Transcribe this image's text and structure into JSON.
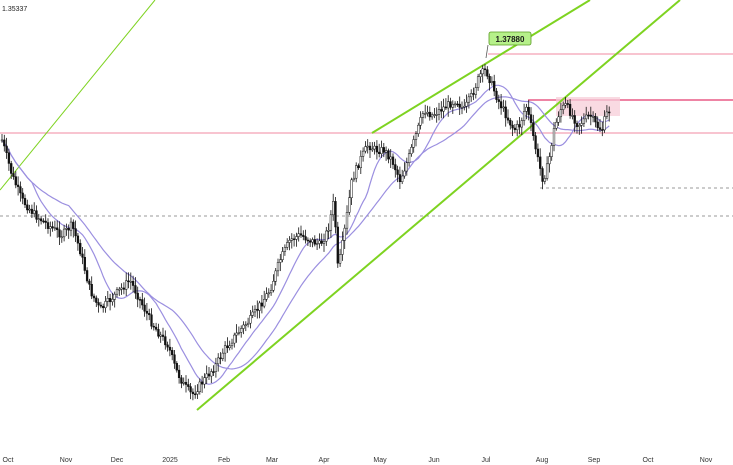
{
  "chart_data": {
    "type": "candlestick",
    "top_price_label": "1.35337",
    "peak_callout": "1.37880",
    "x_tick_labels": [
      "Oct",
      "Nov",
      "Dec",
      "2025",
      "Feb",
      "Mar",
      "Apr",
      "May",
      "Jun",
      "Jul",
      "Aug",
      "Sep",
      "Oct",
      "Nov"
    ],
    "colors": {
      "candles": "#111111",
      "channel_lines": "#7ed321",
      "moving_averages": "#9b8fe0",
      "horizontal_levels": "#f4a0b5",
      "highlight_zone": "#f7cdd8",
      "callout_fill": "#b6f08a",
      "dashed_levels": "#777777"
    },
    "series": [
      {
        "name": "",
        "kind": "price"
      },
      {
        "name": "",
        "kind": "moving-average-fast"
      },
      {
        "name": "",
        "kind": "moving-average-slow"
      }
    ]
  }
}
